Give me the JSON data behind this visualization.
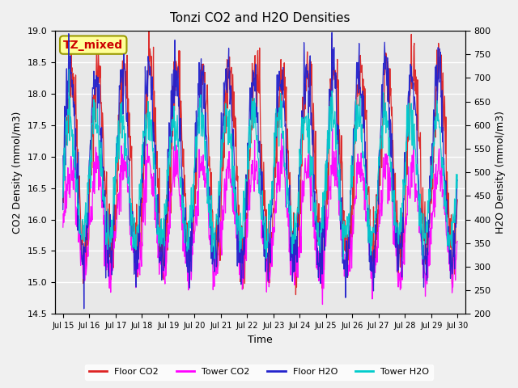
{
  "title": "Tonzi CO2 and H2O Densities",
  "xlabel": "Time",
  "ylabel_left": "CO2 Density (mmol/m3)",
  "ylabel_right": "H2O Density (mmol/m3)",
  "ylim_left": [
    14.5,
    19.0
  ],
  "ylim_right": [
    200,
    800
  ],
  "annotation": "TZ_mixed",
  "annotation_color": "#cc0000",
  "annotation_bg": "#ffff99",
  "annotation_border": "#999900",
  "xtick_labels": [
    "Jul 15",
    "Jul 16",
    "Jul 17",
    "Jul 18",
    "Jul 19",
    "Jul 20",
    "Jul 21",
    "Jul 22",
    "Jul 23",
    "Jul 24",
    "Jul 25",
    "Jul 26",
    "Jul 27",
    "Jul 28",
    "Jul 29",
    "Jul 30"
  ],
  "legend_labels": [
    "Floor CO2",
    "Tower CO2",
    "Floor H2O",
    "Tower H2O"
  ],
  "legend_colors": [
    "#dd2222",
    "#ff00ff",
    "#2222cc",
    "#00cccc"
  ],
  "bg_color": "#e8e8e8",
  "grid_color": "#ffffff",
  "n_points": 960,
  "seed": 42
}
